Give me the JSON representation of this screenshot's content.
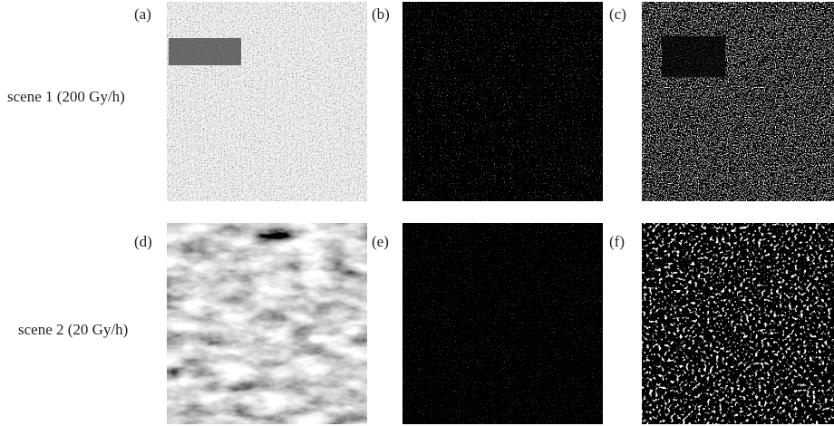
{
  "row_labels": [
    "scene 1 (200 Gy/h)",
    "scene 2 (20 Gy/h)"
  ],
  "panels": [
    {
      "label": "(a)"
    },
    {
      "label": "(b)"
    },
    {
      "label": "(c)"
    },
    {
      "label": "(d)"
    },
    {
      "label": "(e)"
    },
    {
      "label": "(f)"
    }
  ]
}
